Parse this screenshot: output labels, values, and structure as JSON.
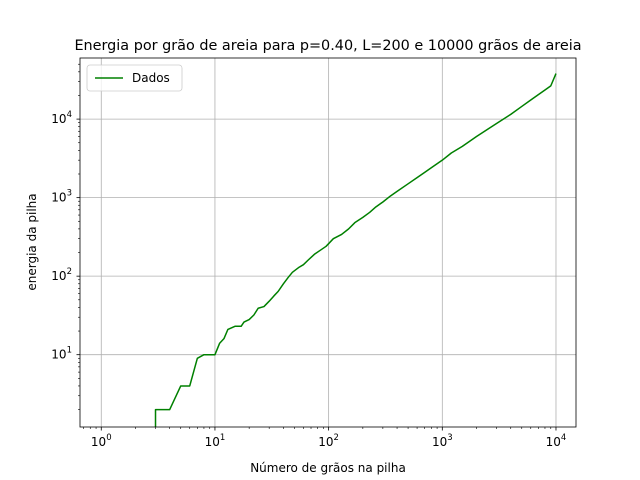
{
  "chart_data": {
    "type": "line",
    "title": "Energia por grão de areia para p=0.40, L=200 e 10000 grãos de areia",
    "xlabel": "Número de grãos na pilha",
    "ylabel": "energia da pilha",
    "xscale": "log",
    "yscale": "log",
    "xlim": [
      0.65,
      15000
    ],
    "ylim": [
      1.2,
      60000
    ],
    "grid": true,
    "legend_position": "top-left",
    "xticks": [
      {
        "value": 1,
        "base": "10",
        "exp": "0"
      },
      {
        "value": 10,
        "base": "10",
        "exp": "1"
      },
      {
        "value": 100,
        "base": "10",
        "exp": "2"
      },
      {
        "value": 1000,
        "base": "10",
        "exp": "3"
      },
      {
        "value": 10000,
        "base": "10",
        "exp": "4"
      }
    ],
    "yticks": [
      {
        "value": 10,
        "base": "10",
        "exp": "1"
      },
      {
        "value": 100,
        "base": "10",
        "exp": "2"
      },
      {
        "value": 1000,
        "base": "10",
        "exp": "3"
      },
      {
        "value": 10000,
        "base": "10",
        "exp": "4"
      }
    ],
    "series": [
      {
        "name": "Dados",
        "color": "#008000",
        "points": [
          [
            3,
            1
          ],
          [
            3,
            2
          ],
          [
            4,
            2
          ],
          [
            5,
            4
          ],
          [
            6,
            4
          ],
          [
            7,
            9
          ],
          [
            8,
            10
          ],
          [
            10,
            10
          ],
          [
            11,
            14
          ],
          [
            12,
            16
          ],
          [
            13,
            21
          ],
          [
            15,
            23
          ],
          [
            17,
            23
          ],
          [
            18,
            26
          ],
          [
            20,
            28
          ],
          [
            22,
            32
          ],
          [
            24,
            39
          ],
          [
            27,
            41
          ],
          [
            30,
            48
          ],
          [
            33,
            56
          ],
          [
            36,
            64
          ],
          [
            40,
            80
          ],
          [
            44,
            96
          ],
          [
            48,
            112
          ],
          [
            55,
            130
          ],
          [
            60,
            140
          ],
          [
            66,
            160
          ],
          [
            75,
            190
          ],
          [
            85,
            215
          ],
          [
            95,
            240
          ],
          [
            110,
            300
          ],
          [
            130,
            340
          ],
          [
            150,
            400
          ],
          [
            170,
            480
          ],
          [
            200,
            560
          ],
          [
            230,
            650
          ],
          [
            260,
            760
          ],
          [
            300,
            880
          ],
          [
            350,
            1050
          ],
          [
            400,
            1200
          ],
          [
            500,
            1500
          ],
          [
            600,
            1800
          ],
          [
            700,
            2100
          ],
          [
            800,
            2400
          ],
          [
            1000,
            3000
          ],
          [
            1200,
            3700
          ],
          [
            1500,
            4500
          ],
          [
            2000,
            6000
          ],
          [
            3000,
            8800
          ],
          [
            4000,
            11500
          ],
          [
            5000,
            14500
          ],
          [
            6000,
            17500
          ],
          [
            7000,
            20500
          ],
          [
            8000,
            23500
          ],
          [
            9000,
            26500
          ],
          [
            10000,
            38000
          ]
        ]
      }
    ]
  }
}
